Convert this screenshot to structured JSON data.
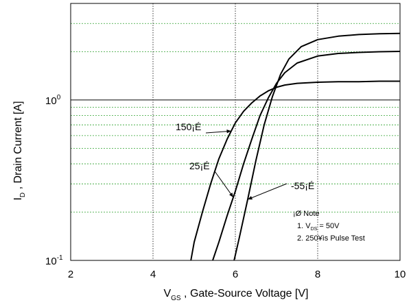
{
  "chart_data": {
    "type": "line",
    "title": "",
    "xlabel_main": "V",
    "xlabel_sub": "GS",
    "xlabel_rest": " , Gate-Source Voltage  [V]",
    "ylabel_main": "I",
    "ylabel_sub": "D",
    "ylabel_rest": " , Drain Current  [A]",
    "xlim": [
      2,
      10
    ],
    "ylim": [
      0.1,
      4
    ],
    "yscale": "log",
    "x_ticks": [
      "2",
      "4",
      "6",
      "8",
      "10"
    ],
    "y_ticks": [
      {
        "base": "10",
        "exp": "-1",
        "value": 0.1
      },
      {
        "base": "10",
        "exp": "0",
        "value": 1
      }
    ],
    "grid": true,
    "series": [
      {
        "name": "150¡É",
        "x": [
          4.92,
          5.0,
          5.2,
          5.4,
          5.6,
          5.8,
          6.0,
          6.2,
          6.4,
          6.6,
          6.8,
          7.0,
          7.2,
          7.5,
          8.0,
          8.5,
          9.0,
          9.5,
          10.0
        ],
        "y": [
          0.1,
          0.13,
          0.2,
          0.3,
          0.43,
          0.57,
          0.72,
          0.85,
          0.96,
          1.06,
          1.14,
          1.2,
          1.24,
          1.27,
          1.29,
          1.3,
          1.3,
          1.31,
          1.31
        ]
      },
      {
        "name": "25¡É",
        "x": [
          5.45,
          5.6,
          5.8,
          6.0,
          6.2,
          6.4,
          6.6,
          6.8,
          7.0,
          7.2,
          7.5,
          8.0,
          8.5,
          9.0,
          9.5,
          10.0
        ],
        "y": [
          0.1,
          0.13,
          0.19,
          0.27,
          0.4,
          0.57,
          0.8,
          1.03,
          1.27,
          1.48,
          1.7,
          1.88,
          1.95,
          1.98,
          2.0,
          2.01
        ]
      },
      {
        "name": "-55¡É",
        "x": [
          5.97,
          6.1,
          6.3,
          6.5,
          6.7,
          6.9,
          7.1,
          7.3,
          7.6,
          8.0,
          8.5,
          9.0,
          9.5,
          10.0
        ],
        "y": [
          0.1,
          0.14,
          0.24,
          0.42,
          0.7,
          1.05,
          1.45,
          1.8,
          2.15,
          2.38,
          2.5,
          2.56,
          2.59,
          2.6
        ]
      }
    ],
    "annotations": [
      {
        "text": "150¡É",
        "target_series": 0,
        "target_x": 5.9
      },
      {
        "text": "25¡É",
        "target_series": 1,
        "target_x": 5.95
      },
      {
        "text": "-55¡É",
        "target_series": 2,
        "target_x": 6.3
      }
    ],
    "note": {
      "header": "¡Ø Note",
      "line1_num": "1. V",
      "line1_sub": "DS",
      "line1_rest": " = 50V",
      "line2": "2. 250¥ìs Pulse Test"
    }
  }
}
